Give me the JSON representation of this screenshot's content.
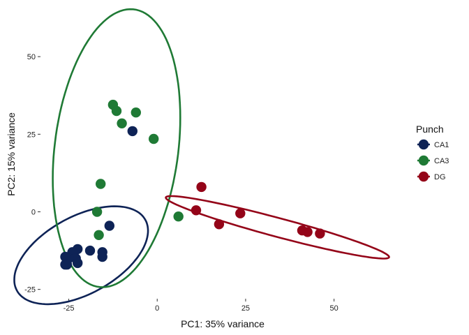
{
  "chart_data": {
    "type": "scatter",
    "xlabel": "PC1: 35% variance",
    "ylabel": "PC2: 15% variance",
    "xlim": [
      -33,
      70
    ],
    "ylim": [
      -28,
      66
    ],
    "x_ticks": [
      -25,
      0,
      25,
      50
    ],
    "y_ticks": [
      -25,
      0,
      25,
      50
    ],
    "x_tick_labels": [
      "-25",
      "0",
      "25",
      "50"
    ],
    "y_tick_labels": [
      "-25",
      "0",
      "25",
      "50"
    ],
    "grid": false,
    "legend": {
      "title": "Punch",
      "placement": "right"
    },
    "series": [
      {
        "name": "CA1",
        "color": "#0e2356",
        "points": [
          [
            -7,
            26
          ],
          [
            -13.5,
            -4.5
          ],
          [
            -15.5,
            -13
          ],
          [
            -15.5,
            -14.5
          ],
          [
            -19,
            -12.5
          ],
          [
            -22.5,
            -12
          ],
          [
            -24,
            -13
          ],
          [
            -23,
            -15
          ],
          [
            -25,
            -15
          ],
          [
            -26,
            -14.5
          ],
          [
            -22.5,
            -16.5
          ],
          [
            -25.5,
            -17
          ],
          [
            -26,
            -17
          ]
        ],
        "ellipse": {
          "center": [
            -21.5,
            -14
          ],
          "radius_major": 21.5,
          "radius_minor": 12,
          "angle_deg": 35
        }
      },
      {
        "name": "CA3",
        "color": "#1f7a35",
        "points": [
          [
            -12.5,
            34.5
          ],
          [
            -11.5,
            32.5
          ],
          [
            -6,
            32
          ],
          [
            -10,
            28.5
          ],
          [
            -1,
            23.5
          ],
          [
            -16,
            9
          ],
          [
            -17,
            0
          ],
          [
            -16.5,
            -7.5
          ],
          [
            6,
            -1.5
          ]
        ],
        "ellipse": {
          "center": [
            -11.5,
            20.5
          ],
          "radius_major": 45,
          "radius_minor": 17.5,
          "angle_deg": 84
        }
      },
      {
        "name": "DG",
        "color": "#940418",
        "points": [
          [
            12.5,
            8
          ],
          [
            11,
            0.5
          ],
          [
            17.5,
            -4
          ],
          [
            23.5,
            -0.5
          ],
          [
            41,
            -6
          ],
          [
            42.5,
            -6.5
          ],
          [
            46,
            -7
          ]
        ],
        "ellipse": {
          "center": [
            34,
            -5
          ],
          "radius_major": 33,
          "radius_minor": 3,
          "angle_deg": -17
        }
      }
    ]
  }
}
